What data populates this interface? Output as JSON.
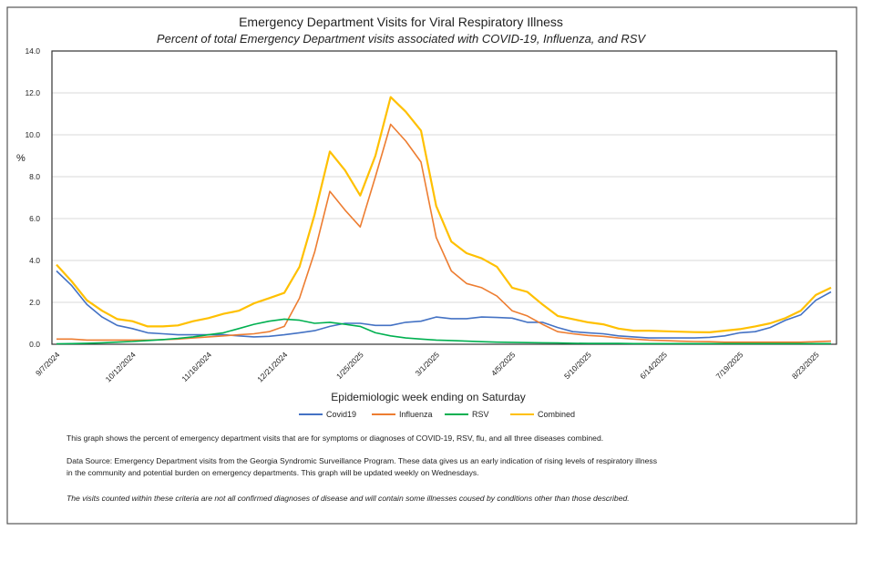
{
  "chart_data": {
    "type": "line",
    "title": "Emergency Department Visits for Viral Respiratory Illness",
    "subtitle": "Percent of total Emergency Department visits associated with COVID-19, Influenza, and RSV",
    "y_label": "%",
    "x_label": "Epidemiologic week ending on Saturday",
    "categories": [
      "9/7/2024",
      null,
      null,
      null,
      null,
      "10/12/2024",
      null,
      null,
      null,
      null,
      "11/16/2024",
      null,
      null,
      null,
      null,
      "12/21/2024",
      null,
      null,
      null,
      null,
      "1/25/2025",
      null,
      null,
      null,
      null,
      "3/1/2025",
      null,
      null,
      null,
      null,
      "4/5/2025",
      null,
      null,
      null,
      null,
      "5/10/2025",
      null,
      null,
      null,
      null,
      "6/14/2025",
      null,
      null,
      null,
      null,
      "7/19/2025",
      null,
      null,
      null,
      null,
      "8/23/2025",
      null
    ],
    "ylim": [
      0,
      14
    ],
    "yticks": [
      {
        "value": 0,
        "label": "0.0"
      },
      {
        "value": 2,
        "label": "2.0"
      },
      {
        "value": 4,
        "label": "4.0"
      },
      {
        "value": 6,
        "label": "6.0"
      },
      {
        "value": 8,
        "label": "8.0"
      },
      {
        "value": 10,
        "label": "10.0"
      },
      {
        "value": 12,
        "label": "12.0"
      },
      {
        "value": 14,
        "label": "14.0"
      }
    ],
    "grid": true,
    "legend": "bottom",
    "series": [
      {
        "name": "Covid19",
        "color": "#4472c4",
        "values": [
          3.5,
          2.8,
          1.9,
          1.3,
          0.9,
          0.75,
          0.55,
          0.5,
          0.45,
          0.45,
          0.45,
          0.45,
          0.4,
          0.35,
          0.38,
          0.45,
          0.55,
          0.65,
          0.85,
          1.0,
          1.0,
          0.9,
          0.9,
          1.05,
          1.1,
          1.3,
          1.22,
          1.22,
          1.3,
          1.28,
          1.25,
          1.05,
          1.05,
          0.8,
          0.6,
          0.55,
          0.5,
          0.4,
          0.35,
          0.3,
          0.3,
          0.3,
          0.3,
          0.33,
          0.4,
          0.55,
          0.6,
          0.8,
          1.15,
          1.4,
          2.1,
          2.5
        ]
      },
      {
        "name": "Influenza",
        "color": "#ed7d31",
        "values": [
          0.25,
          0.25,
          0.2,
          0.2,
          0.2,
          0.2,
          0.2,
          0.22,
          0.25,
          0.3,
          0.35,
          0.4,
          0.45,
          0.5,
          0.6,
          0.85,
          2.2,
          4.4,
          7.3,
          6.4,
          5.6,
          8.0,
          10.5,
          9.7,
          8.7,
          5.1,
          3.5,
          2.9,
          2.7,
          2.3,
          1.6,
          1.35,
          0.95,
          0.6,
          0.5,
          0.42,
          0.38,
          0.3,
          0.25,
          0.2,
          0.18,
          0.15,
          0.13,
          0.12,
          0.1,
          0.1,
          0.1,
          0.1,
          0.1,
          0.1,
          0.12,
          0.15
        ]
      },
      {
        "name": "RSV",
        "color": "#00b050",
        "values": [
          0.02,
          0.03,
          0.05,
          0.07,
          0.1,
          0.13,
          0.18,
          0.22,
          0.28,
          0.35,
          0.45,
          0.55,
          0.75,
          0.95,
          1.1,
          1.2,
          1.15,
          1.0,
          1.05,
          0.95,
          0.85,
          0.55,
          0.4,
          0.3,
          0.25,
          0.2,
          0.18,
          0.15,
          0.12,
          0.1,
          0.09,
          0.08,
          0.07,
          0.06,
          0.05,
          0.04,
          0.04,
          0.04,
          0.03,
          0.03,
          0.03,
          0.03,
          0.03,
          0.03,
          0.03,
          0.03,
          0.03,
          0.03,
          0.03,
          0.03,
          0.03,
          0.03
        ]
      },
      {
        "name": "Combined",
        "color": "#ffc000",
        "values": [
          3.8,
          3.0,
          2.1,
          1.6,
          1.2,
          1.1,
          0.85,
          0.85,
          0.9,
          1.1,
          1.25,
          1.45,
          1.6,
          1.95,
          2.2,
          2.45,
          3.7,
          6.2,
          9.2,
          8.3,
          7.1,
          9.0,
          11.8,
          11.1,
          10.2,
          6.6,
          4.9,
          4.35,
          4.1,
          3.7,
          2.7,
          2.5,
          1.9,
          1.35,
          1.2,
          1.05,
          0.95,
          0.75,
          0.65,
          0.65,
          0.62,
          0.6,
          0.58,
          0.57,
          0.65,
          0.72,
          0.85,
          1.0,
          1.25,
          1.6,
          2.35,
          2.7
        ]
      }
    ],
    "notes": [
      "This graph shows the percent of emergency department visits that are for symptoms or diagnoses of COVID-19, RSV, flu, and all three diseases combined.",
      "Data Source: Emergency Department visits from the Georgia Syndromic Surveillance Program. These data gives us an early indication of rising levels of respiratory illness",
      "in the community and potential burden on emergency departments. This graph will be updated weekly on Wednesdays.",
      "The visits counted within these criteria are not all confirmed diagnoses of disease and will contain some illnesses coused by conditions other than those described."
    ]
  }
}
